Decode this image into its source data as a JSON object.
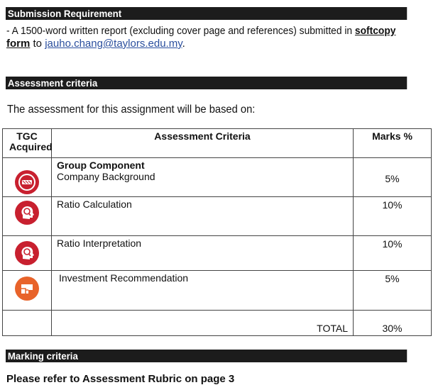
{
  "sections": {
    "submission": "Submission Requirement",
    "assessment": "Assessment criteria",
    "marking": "Marking criteria"
  },
  "submission_text": {
    "prefix": "- A 1500-word written report (excluding cover page and references) submitted in ",
    "bold_u_1": "softcopy",
    "bold_u_2": "form",
    "to": " to ",
    "email": "jauho.chang@taylors.edu.my",
    "suffix": "."
  },
  "assessment_intro": "The assessment for this assignment will be based on:",
  "table": {
    "headers": {
      "tgc": "TGC Acquired",
      "criteria": "Assessment Criteria",
      "marks": "Marks %"
    },
    "group_label": "Group Component",
    "rows": [
      {
        "criteria": "Company Background",
        "marks": "5%",
        "icon": "handshake-badge-icon",
        "color": "#c8202f"
      },
      {
        "criteria": "Ratio Calculation",
        "marks": "10%",
        "icon": "head-search-icon",
        "color": "#c8202f"
      },
      {
        "criteria": "Ratio Interpretation",
        "marks": "10%",
        "icon": "head-search-icon",
        "color": "#c8202f"
      },
      {
        "criteria": "Investment Recommendation",
        "marks": "5%",
        "icon": "puzzle-blocks-icon",
        "color": "#e8632a"
      }
    ],
    "total_label": "TOTAL",
    "total_marks": "30%"
  },
  "cut_text": "Please refer to Assessment Rubric on page 3"
}
